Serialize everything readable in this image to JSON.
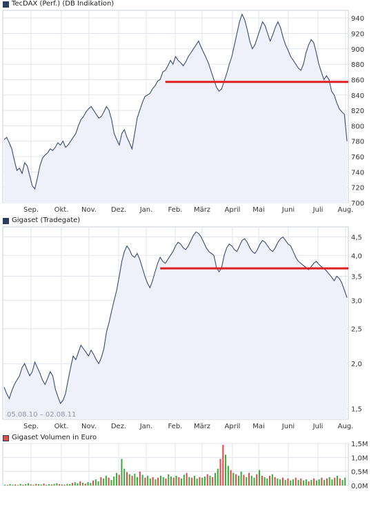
{
  "chart_data": [
    {
      "type": "line",
      "title": "TecDAX (Perf.) (DB Indikation)",
      "legend_color": "#2b3f63",
      "line_color": "#3a4a6b",
      "fill_color": "#eef1fa",
      "ylim": [
        700,
        950
      ],
      "y_ticks": [
        700,
        720,
        740,
        760,
        780,
        800,
        820,
        840,
        860,
        880,
        900,
        920,
        940
      ],
      "months": [
        "Sep.",
        "Okt.",
        "Nov.",
        "Dez.",
        "Jan.",
        "Feb.",
        "März",
        "April",
        "Mai",
        "Juni",
        "Juli",
        "Aug."
      ],
      "reference_line": {
        "value": 857,
        "from_index": 63,
        "color": "#e02020"
      },
      "values": [
        782,
        785,
        778,
        770,
        755,
        742,
        745,
        738,
        752,
        748,
        735,
        722,
        718,
        732,
        748,
        758,
        762,
        765,
        770,
        768,
        772,
        778,
        775,
        780,
        772,
        775,
        780,
        785,
        790,
        800,
        808,
        812,
        818,
        822,
        825,
        820,
        815,
        810,
        812,
        818,
        825,
        820,
        808,
        790,
        782,
        775,
        790,
        795,
        785,
        778,
        770,
        790,
        810,
        820,
        830,
        838,
        840,
        842,
        848,
        852,
        858,
        860,
        870,
        872,
        878,
        885,
        880,
        890,
        885,
        882,
        878,
        883,
        890,
        895,
        900,
        905,
        910,
        902,
        895,
        888,
        880,
        870,
        860,
        850,
        845,
        848,
        858,
        868,
        880,
        890,
        905,
        920,
        935,
        945,
        938,
        925,
        910,
        900,
        905,
        915,
        925,
        935,
        930,
        920,
        910,
        918,
        928,
        935,
        928,
        915,
        905,
        898,
        890,
        885,
        880,
        875,
        872,
        880,
        895,
        905,
        912,
        908,
        895,
        880,
        870,
        860,
        865,
        860,
        845,
        840,
        830,
        822,
        818,
        815,
        780
      ]
    },
    {
      "type": "line",
      "title": "Gigaset (Tradegate)",
      "legend_color": "#2b3f63",
      "line_color": "#3a4a6b",
      "fill_color": "#eef1fa",
      "ylim": [
        1.4,
        4.8
      ],
      "y_ticks": [
        1.5,
        2.0,
        2.5,
        3.0,
        3.5,
        4.0,
        4.5
      ],
      "y_tick_labels": [
        "1,5",
        "2,0",
        "2,5",
        "3,0",
        "3,5",
        "4,0",
        "4,5"
      ],
      "months": [
        "Sep.",
        "Okt.",
        "Nov.",
        "Dez.",
        "Jan.",
        "Feb.",
        "März",
        "April",
        "Mai",
        "Juni",
        "Juli",
        "Aug."
      ],
      "date_range": "05.08.10 – 02.08.11",
      "reference_line": {
        "value": 3.68,
        "from_index": 61,
        "color": "#e02020"
      },
      "values": [
        1.72,
        1.65,
        1.6,
        1.68,
        1.75,
        1.8,
        1.85,
        1.95,
        2.0,
        1.92,
        1.85,
        1.9,
        2.02,
        1.95,
        1.88,
        1.8,
        1.75,
        1.82,
        1.9,
        1.85,
        1.7,
        1.62,
        1.55,
        1.58,
        1.65,
        1.8,
        1.95,
        2.1,
        2.05,
        2.15,
        2.25,
        2.2,
        2.15,
        2.1,
        2.18,
        2.12,
        2.05,
        2.0,
        2.08,
        2.2,
        2.45,
        2.6,
        2.8,
        3.0,
        3.2,
        3.5,
        3.85,
        4.1,
        4.25,
        4.15,
        4.0,
        3.95,
        4.05,
        3.9,
        3.7,
        3.5,
        3.35,
        3.25,
        3.4,
        3.6,
        3.8,
        3.95,
        3.85,
        3.8,
        3.9,
        4.0,
        4.1,
        4.25,
        4.35,
        4.3,
        4.2,
        4.15,
        4.25,
        4.4,
        4.55,
        4.65,
        4.6,
        4.5,
        4.35,
        4.2,
        4.1,
        4.05,
        4.0,
        3.7,
        3.6,
        3.7,
        4.0,
        4.2,
        4.3,
        4.25,
        4.15,
        4.1,
        4.25,
        4.4,
        4.45,
        4.35,
        4.2,
        4.1,
        4.05,
        4.15,
        4.3,
        4.4,
        4.35,
        4.25,
        4.15,
        4.1,
        4.2,
        4.35,
        4.45,
        4.5,
        4.4,
        4.3,
        4.25,
        4.1,
        3.95,
        3.85,
        3.8,
        3.75,
        3.7,
        3.65,
        3.72,
        3.8,
        3.85,
        3.78,
        3.72,
        3.68,
        3.62,
        3.55,
        3.48,
        3.4,
        3.5,
        3.45,
        3.35,
        3.2,
        3.05
      ]
    },
    {
      "type": "bar",
      "title": "Gigaset Volumen in Euro",
      "legend_color": "#d94f4f",
      "ylim": [
        0,
        1.5
      ],
      "y_ticks": [
        0,
        0.5,
        1.0,
        1.5
      ],
      "y_tick_labels": [
        "0,0M",
        "0,5M",
        "1,0M",
        "1,5M"
      ],
      "up_color": "#3fae3f",
      "down_color": "#d94f4f",
      "values": [
        0.03,
        0.02,
        0.05,
        0.03,
        0.04,
        0.02,
        0.06,
        0.03,
        0.05,
        0.08,
        0.04,
        0.03,
        0.06,
        0.05,
        0.04,
        0.07,
        0.03,
        0.05,
        0.04,
        0.06,
        0.08,
        0.05,
        0.04,
        0.03,
        0.06,
        0.05,
        0.09,
        0.12,
        0.08,
        0.15,
        0.1,
        0.07,
        0.12,
        0.09,
        0.18,
        0.22,
        0.15,
        0.3,
        0.25,
        0.35,
        0.28,
        0.2,
        0.32,
        0.45,
        0.38,
        0.95,
        0.6,
        0.48,
        0.4,
        0.35,
        0.42,
        0.3,
        0.5,
        0.38,
        0.28,
        0.35,
        0.25,
        0.3,
        0.22,
        0.28,
        0.35,
        0.3,
        0.25,
        0.4,
        0.32,
        0.28,
        0.35,
        0.3,
        0.25,
        0.38,
        0.45,
        0.3,
        0.28,
        0.35,
        0.25,
        0.3,
        0.28,
        0.32,
        0.4,
        0.35,
        0.3,
        0.45,
        0.6,
        0.95,
        1.45,
        1.1,
        0.7,
        0.55,
        0.45,
        0.4,
        0.35,
        0.5,
        0.38,
        0.3,
        0.45,
        0.35,
        0.28,
        0.4,
        0.55,
        0.35,
        0.3,
        0.25,
        0.35,
        0.4,
        0.3,
        0.25,
        0.22,
        0.28,
        0.2,
        0.25,
        0.18,
        0.22,
        0.28,
        0.2,
        0.25,
        0.18,
        0.22,
        0.15,
        0.2,
        0.25,
        0.18,
        0.22,
        0.28,
        0.2,
        0.25,
        0.3,
        0.22,
        0.28,
        0.35,
        0.25,
        0.2,
        0.28
      ],
      "up_flags": [
        1,
        0,
        1,
        1,
        0,
        1,
        1,
        0,
        1,
        1,
        0,
        1,
        0,
        1,
        1,
        0,
        1,
        1,
        0,
        1,
        1,
        0,
        1,
        0,
        1,
        1,
        0,
        1,
        1,
        0,
        1,
        0,
        1,
        1,
        0,
        1,
        1,
        0,
        1,
        1,
        0,
        1,
        1,
        1,
        0,
        1,
        1,
        0,
        1,
        0,
        1,
        1,
        0,
        1,
        0,
        1,
        1,
        0,
        1,
        0,
        1,
        1,
        0,
        1,
        1,
        0,
        1,
        0,
        1,
        1,
        0,
        1,
        0,
        1,
        1,
        0,
        1,
        1,
        0,
        1,
        0,
        1,
        1,
        0,
        0,
        1,
        1,
        0,
        1,
        0,
        1,
        1,
        0,
        1,
        0,
        1,
        1,
        0,
        1,
        0,
        1,
        1,
        0,
        1,
        0,
        1,
        1,
        0,
        1,
        0,
        1,
        1,
        0,
        1,
        0,
        1,
        1,
        0,
        1,
        0,
        1,
        1,
        0,
        1,
        0,
        1,
        1,
        0,
        1,
        0,
        1,
        1
      ]
    }
  ]
}
